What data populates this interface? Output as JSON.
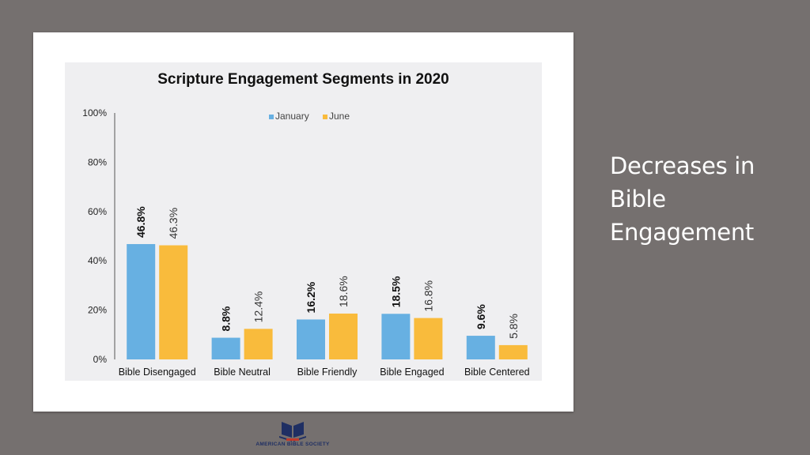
{
  "slide": {
    "side_heading": "Decreases in Bible Engagement",
    "logo_text": "AMERICAN BIBLE SOCIETY",
    "colors": {
      "background": "#75706f",
      "january": "#67b0e2",
      "june": "#f9bb3c"
    }
  },
  "chart_data": {
    "type": "bar",
    "title": "Scripture Engagement Segments in 2020",
    "categories": [
      "Bible Disengaged",
      "Bible Neutral",
      "Bible Friendly",
      "Bible Engaged",
      "Bible Centered"
    ],
    "series": [
      {
        "name": "January",
        "values": [
          46.8,
          8.8,
          16.2,
          18.5,
          9.6
        ],
        "labels": [
          "46.8%",
          "8.8%",
          "16.2%",
          "18.5%",
          "9.6%"
        ],
        "color": "#67b0e2"
      },
      {
        "name": "June",
        "values": [
          46.3,
          12.4,
          18.6,
          16.8,
          5.8
        ],
        "labels": [
          "46.3%",
          "12.4%",
          "18.6%",
          "16.8%",
          "5.8%"
        ],
        "color": "#f9bb3c"
      }
    ],
    "ylim": [
      0,
      100
    ],
    "yticks": [
      "0%",
      "20%",
      "40%",
      "60%",
      "80%",
      "100%"
    ],
    "ytick_values": [
      0,
      20,
      40,
      60,
      80,
      100
    ],
    "legend_position": "top-center",
    "grid": false
  }
}
